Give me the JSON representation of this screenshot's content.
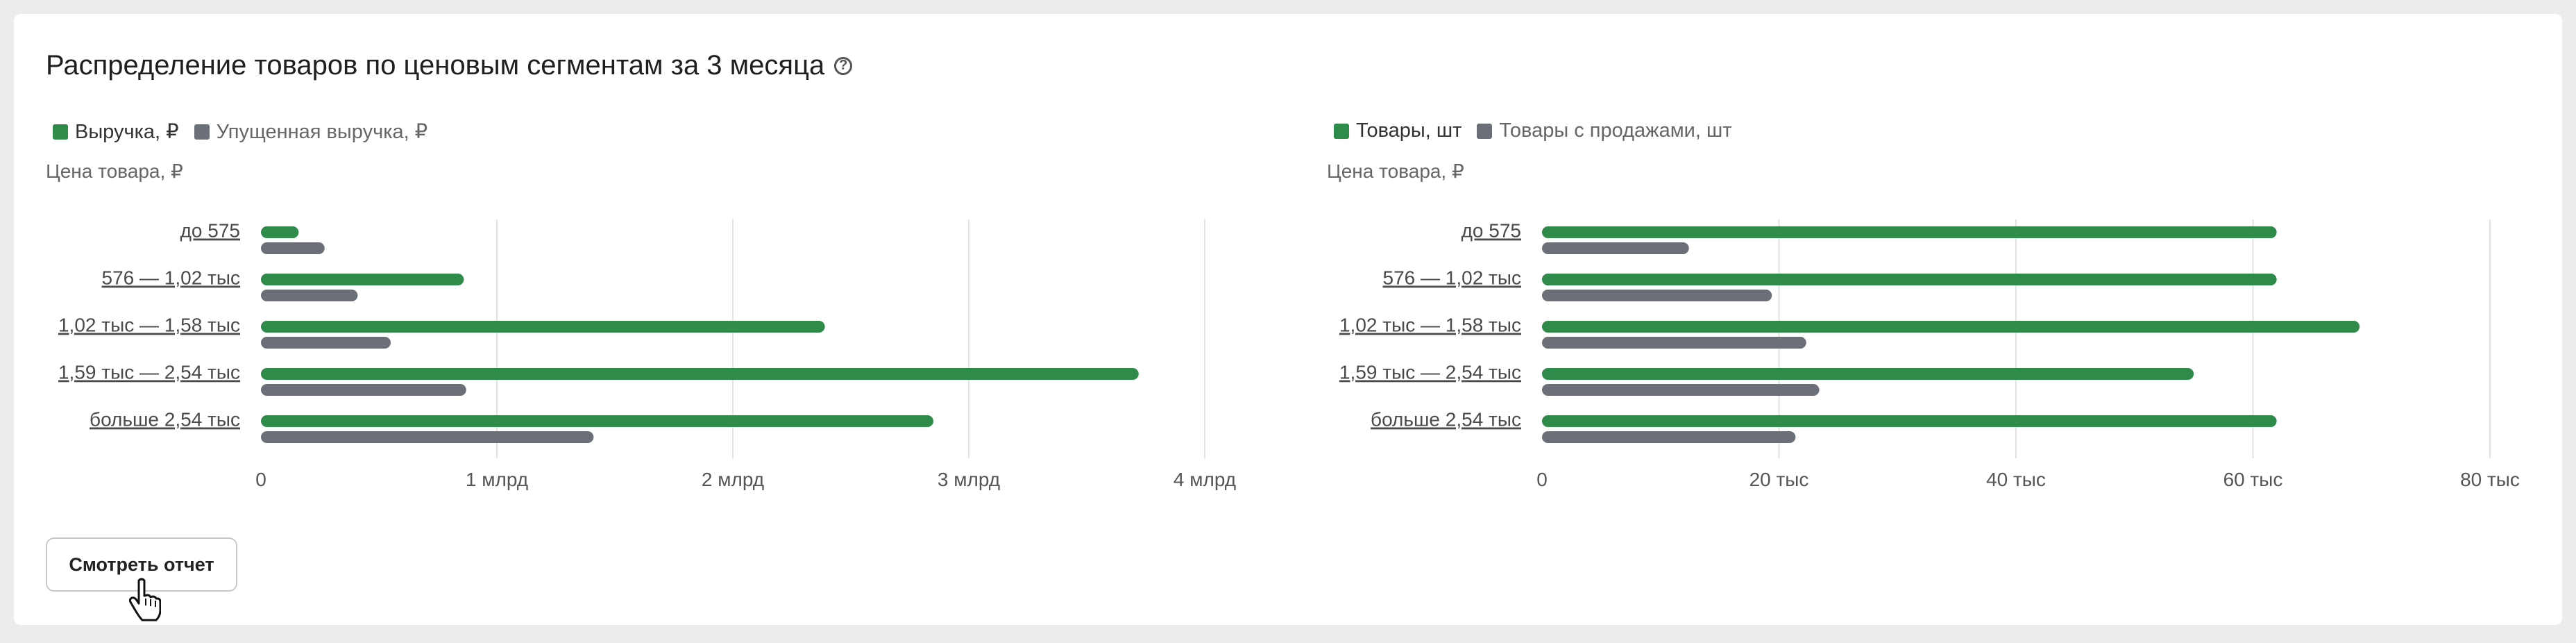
{
  "title": "Распределение товаров по ценовым сегментам за 3 месяца",
  "button_label": "Смотреть отчет",
  "colors": {
    "primary": "#2e8b4a",
    "secondary": "#6b7078"
  },
  "icons": {
    "help": "question-circle-icon",
    "cursor": "hand-pointer-icon"
  },
  "chart_data": [
    {
      "type": "bar",
      "orientation": "horizontal",
      "ylabel": "Цена товара, ₽",
      "categories": [
        "до 575",
        "576 — 1,02 тыс",
        "1,02 тыс — 1,58 тыс",
        "1,59 тыс — 2,54 тыс",
        "больше 2,54 тыс"
      ],
      "series": [
        {
          "name": "Выручка, ₽",
          "values": [
            160000000,
            860000000,
            2390000000,
            3720000000,
            2850000000
          ]
        },
        {
          "name": "Упущенная выручка, ₽",
          "values": [
            270000000,
            410000000,
            550000000,
            870000000,
            1410000000
          ]
        }
      ],
      "xlim": [
        0,
        4000000000
      ],
      "ticks": [
        0,
        1000000000,
        2000000000,
        3000000000,
        4000000000
      ],
      "tick_labels": [
        "0",
        "1 млрд",
        "2 млрд",
        "3 млрд",
        "4 млрд"
      ],
      "grid": true,
      "legend": "top-left"
    },
    {
      "type": "bar",
      "orientation": "horizontal",
      "ylabel": "Цена товара, ₽",
      "categories": [
        "до 575",
        "576 — 1,02 тыс",
        "1,02 тыс — 1,58 тыс",
        "1,59 тыс — 2,54 тыс",
        "больше 2,54 тыс"
      ],
      "series": [
        {
          "name": "Товары, шт",
          "values": [
            62000,
            62000,
            69000,
            55000,
            62000
          ]
        },
        {
          "name": "Товары с продажами, шт",
          "values": [
            12400,
            19400,
            22300,
            23400,
            21400
          ]
        }
      ],
      "xlim": [
        0,
        80000
      ],
      "ticks": [
        0,
        20000,
        40000,
        60000,
        80000
      ],
      "tick_labels": [
        "0",
        "20 тыс",
        "40 тыс",
        "60 тыс",
        "80 тыс"
      ],
      "grid": true,
      "legend": "top-left"
    }
  ]
}
